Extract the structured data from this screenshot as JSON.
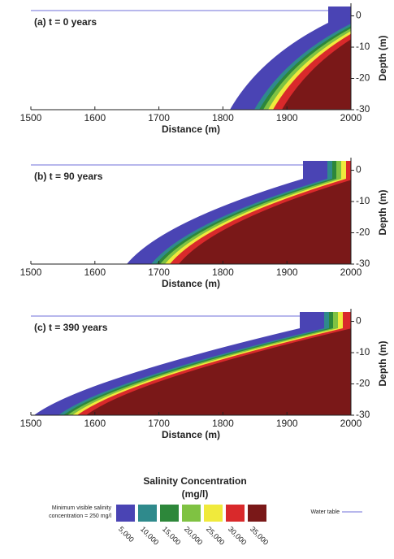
{
  "chart_data": [
    {
      "type": "contour",
      "title": "(a) t = 0 years",
      "xlabel": "Distance (m)",
      "ylabel": "Depth (m)",
      "xlim": [
        1500,
        2000
      ],
      "xticks": [
        1500,
        1600,
        1700,
        1800,
        1900,
        2000
      ],
      "ylim": [
        -30,
        3
      ],
      "yticks": [
        0,
        -10,
        -20,
        -30
      ]
    },
    {
      "type": "contour",
      "title": "(b) t = 90 years",
      "xlabel": "Distance (m)",
      "ylabel": "Depth (m)",
      "xlim": [
        1500,
        2000
      ],
      "xticks": [
        1500,
        1600,
        1700,
        1800,
        1900,
        2000
      ],
      "ylim": [
        -30,
        3
      ],
      "yticks": [
        0,
        -10,
        -20,
        -30
      ]
    },
    {
      "type": "contour",
      "title": "(c) t = 390 years",
      "xlabel": "Distance (m)",
      "ylabel": "Depth (m)",
      "xlim": [
        1500,
        2000
      ],
      "xticks": [
        1500,
        1600,
        1700,
        1800,
        1900,
        2000
      ],
      "ylim": [
        -30,
        3
      ],
      "yticks": [
        0,
        -10,
        -20,
        -30
      ]
    }
  ],
  "legend": {
    "title": "Salinity Concentration",
    "unit": "(mg/l)",
    "note": [
      "Minimum visible salinity",
      "concentration = 250 mg/l"
    ],
    "items": [
      {
        "label": "5,000",
        "color": "#4a44b4"
      },
      {
        "label": "10,000",
        "color": "#2f8a8c"
      },
      {
        "label": "15,000",
        "color": "#2d873a"
      },
      {
        "label": "20,000",
        "color": "#7fc242"
      },
      {
        "label": "25,000",
        "color": "#f0ea3c"
      },
      {
        "label": "30,000",
        "color": "#d9292b"
      },
      {
        "label": "35,000",
        "color": "#7a1818"
      }
    ],
    "water_table": "Water table",
    "water_color": "#6f6fd8"
  }
}
